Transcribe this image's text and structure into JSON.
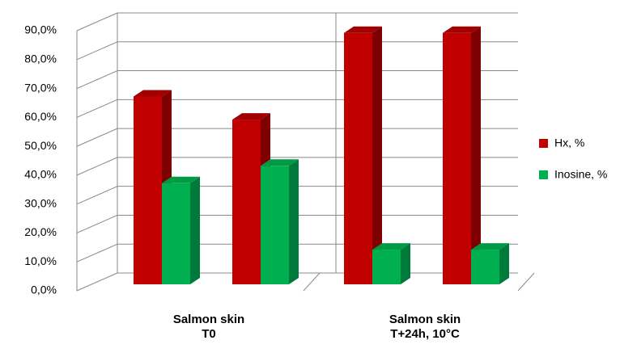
{
  "chart_data": {
    "type": "bar3d",
    "categories": [
      null,
      null,
      null,
      null
    ],
    "groups": [
      [
        "Salmon skin",
        "T0"
      ],
      [
        "Salmon skin",
        "T+24h, 10°C"
      ]
    ],
    "series": [
      {
        "name": "Hx, %",
        "color": "#c00000",
        "side": "#7f0000",
        "top": "#a00000",
        "values": [
          65,
          57,
          87,
          87
        ]
      },
      {
        "name": "Inosine, %",
        "color": "#00b050",
        "side": "#007a3a",
        "top": "#009a45",
        "values": [
          35,
          41,
          12,
          12
        ]
      }
    ],
    "ylim": [
      0,
      90
    ],
    "yticks": [
      {
        "value": 0,
        "label": "0,0%"
      },
      {
        "value": 10,
        "label": "10,0%"
      },
      {
        "value": 20,
        "label": "20,0%"
      },
      {
        "value": 30,
        "label": "30,0%"
      },
      {
        "value": 40,
        "label": "40,0%"
      },
      {
        "value": 50,
        "label": "50,0%"
      },
      {
        "value": 60,
        "label": "60,0%"
      },
      {
        "value": 70,
        "label": "70,0%"
      },
      {
        "value": 80,
        "label": "80,0%"
      },
      {
        "value": 90,
        "label": "90,0%"
      }
    ],
    "grid": true,
    "legend": "right"
  }
}
